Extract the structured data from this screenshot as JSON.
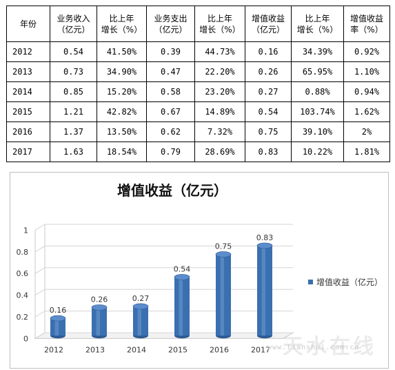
{
  "table": {
    "headers": [
      "年份",
      "业务收入\n（亿元）",
      "比上年\n增长（%）",
      "业务支出\n（亿元）",
      "比上年\n增长（%）",
      "增值收益\n（亿元）",
      "比上年\n增长（%）",
      "增值收益\n率（%）"
    ],
    "rows": [
      [
        "2012",
        "0.54",
        "41.50%",
        "0.39",
        "44.73%",
        "0.16",
        "34.39%",
        "0.92%"
      ],
      [
        "2013",
        "0.73",
        "34.90%",
        "0.47",
        "22.20%",
        "0.26",
        "65.95%",
        "1.10%"
      ],
      [
        "2014",
        "0.85",
        "15.20%",
        "0.58",
        "23.20%",
        "0.27",
        "0.88%",
        "0.94%"
      ],
      [
        "2015",
        "1.21",
        "42.82%",
        "0.67",
        "14.89%",
        "0.54",
        "103.74%",
        "1.62%"
      ],
      [
        "2016",
        "1.37",
        "13.50%",
        "0.62",
        "7.32%",
        "0.75",
        "39.10%",
        "2%"
      ],
      [
        "2017",
        "1.63",
        "18.54%",
        "0.79",
        "28.69%",
        "0.83",
        "10.22%",
        "1.81%"
      ]
    ]
  },
  "chart_data": {
    "type": "bar",
    "title": "增值收益（亿元）",
    "categories": [
      "2012",
      "2013",
      "2014",
      "2015",
      "2016",
      "2017"
    ],
    "series": [
      {
        "name": "增值收益（亿元）",
        "values": [
          0.16,
          0.26,
          0.27,
          0.54,
          0.75,
          0.83
        ]
      }
    ],
    "ylim": [
      0,
      1
    ],
    "yticks": [
      "0",
      "0.2",
      "0.4",
      "0.6",
      "0.8",
      "1"
    ],
    "grid": true,
    "legend": "right",
    "bar_style": "3d-cylinder",
    "bar_color": "#3a6fb0"
  },
  "watermark": {
    "logo_text": "天水在线",
    "url": "www.tianshui.com.cn"
  }
}
